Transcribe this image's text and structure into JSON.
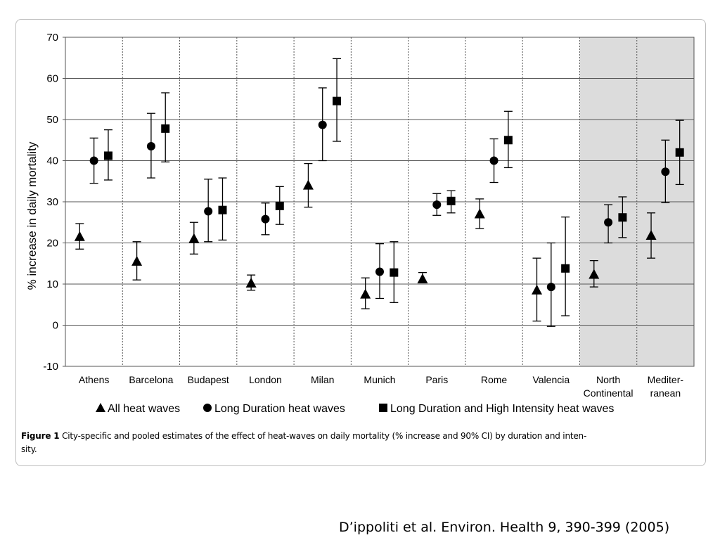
{
  "chart_data": {
    "type": "scatter",
    "title": "",
    "xlabel": "",
    "ylabel": "% increase in daily mortality",
    "ylim": [
      -10,
      70
    ],
    "yticks": [
      -10,
      0,
      10,
      20,
      30,
      40,
      50,
      60,
      70
    ],
    "grid": "horizontal",
    "categories": [
      "Athens",
      "Barcelona",
      "Budapest",
      "London",
      "Milan",
      "Munich",
      "Paris",
      "Rome",
      "Valencia",
      "North Continental",
      "Mediter-ranean"
    ],
    "category_label_lines": [
      [
        "Athens"
      ],
      [
        "Barcelona"
      ],
      [
        "Budapest"
      ],
      [
        "London"
      ],
      [
        "Milan"
      ],
      [
        "Munich"
      ],
      [
        "Paris"
      ],
      [
        "Rome"
      ],
      [
        "Valencia"
      ],
      [
        "North",
        "Continental"
      ],
      [
        "Mediter-",
        "ranean"
      ]
    ],
    "shaded_categories": [
      "North Continental",
      "Mediter-ranean"
    ],
    "shade_color": "#dcdcdc",
    "legend_position": "bottom",
    "series": [
      {
        "name": "All heat waves",
        "marker": "triangle",
        "values": [
          21.5,
          15.5,
          21,
          10.2,
          34,
          7.5,
          11.2,
          27,
          8.5,
          12.3,
          21.8
        ],
        "lower": [
          18.5,
          11,
          17.3,
          8.5,
          28.7,
          4,
          null,
          23.5,
          1,
          9.3,
          16.3
        ],
        "upper": [
          24.7,
          20.3,
          25,
          12.2,
          39.3,
          11.5,
          12.8,
          30.7,
          16.3,
          15.7,
          27.3
        ]
      },
      {
        "name": "Long Duration heat waves",
        "marker": "circle",
        "values": [
          40,
          43.5,
          27.7,
          25.8,
          48.7,
          13,
          29.3,
          40,
          9.3,
          25,
          37.3
        ],
        "lower": [
          34.5,
          35.8,
          20.3,
          22,
          40,
          6.5,
          26.7,
          34.7,
          -0.3,
          20,
          29.8
        ],
        "upper": [
          45.5,
          51.5,
          35.5,
          29.7,
          57.7,
          19.8,
          32,
          45.3,
          20,
          29.3,
          45
        ]
      },
      {
        "name": "Long Duration and High Intensity heat waves",
        "marker": "square",
        "values": [
          41.2,
          47.8,
          28,
          29,
          54.5,
          12.8,
          30.2,
          45,
          13.8,
          26.2,
          42
        ],
        "lower": [
          35.3,
          39.7,
          20.7,
          24.5,
          44.7,
          5.5,
          27.3,
          38.3,
          2.3,
          21.3,
          34.2
        ],
        "upper": [
          47.5,
          56.5,
          35.8,
          33.7,
          64.8,
          20.3,
          32.7,
          52,
          26.3,
          31.2,
          49.8
        ]
      }
    ]
  },
  "caption": {
    "label": "Figure 1",
    "line1": "City-specific and pooled estimates of the effect of heat-waves on daily mortality (% increase and 90% CI) by duration and inten-",
    "line2": "sity."
  },
  "citation": "D’ippoliti et al. Environ. Health 9, 390-399 (2005)"
}
